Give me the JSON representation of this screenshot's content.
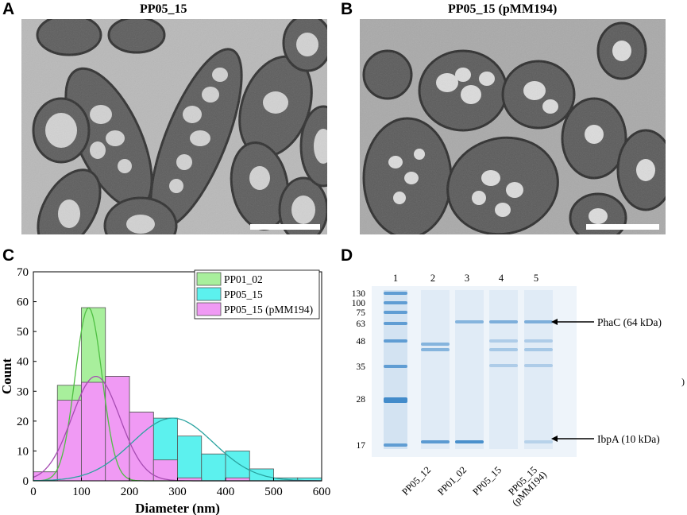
{
  "panels": {
    "a": {
      "letter": "A",
      "title": "PP05_15"
    },
    "b": {
      "letter": "B",
      "title": "PP05_15 (pMM194)"
    },
    "c": {
      "letter": "C"
    },
    "d": {
      "letter": "D"
    }
  },
  "chart_data": {
    "type": "bar",
    "subtype": "overlaid-histogram-with-gaussian-fits",
    "xlabel": "Diameter (nm)",
    "ylabel": "Count",
    "xlim": [
      0,
      600
    ],
    "ylim": [
      0,
      70
    ],
    "xticks": [
      0,
      100,
      200,
      300,
      400,
      500,
      600
    ],
    "yticks": [
      0,
      10,
      20,
      30,
      40,
      50,
      60,
      70
    ],
    "legend_position": "top-right",
    "bin_width": 50,
    "series": [
      {
        "name": "PP01_02",
        "color": "#a8ef9c",
        "line_color": "#4fbf43",
        "bins": [
          0,
          50,
          100,
          150,
          200,
          250,
          300,
          350,
          400,
          450,
          500,
          550
        ],
        "values": [
          3,
          32,
          58,
          35,
          23,
          7,
          2,
          0,
          0,
          0,
          0,
          0
        ],
        "fit": {
          "mean": 115,
          "sd": 28,
          "peak": 58
        }
      },
      {
        "name": "PP05_15",
        "color": "#5cf1ee",
        "line_color": "#2aa3a0",
        "bins": [
          0,
          50,
          100,
          150,
          200,
          250,
          300,
          350,
          400,
          450,
          500,
          550
        ],
        "values": [
          0,
          0,
          0,
          0,
          9,
          21,
          15,
          9,
          10,
          4,
          1,
          1
        ],
        "fit": {
          "mean": 290,
          "sd": 85,
          "peak": 21
        }
      },
      {
        "name": "PP05_15 (pMM194)",
        "color": "#f09af4",
        "line_color": "#a64cb2",
        "bins": [
          0,
          50,
          100,
          150,
          200,
          250,
          300,
          350,
          400,
          450,
          500,
          550
        ],
        "values": [
          3,
          27,
          33,
          35,
          23,
          7,
          1,
          0,
          1,
          0,
          0,
          0
        ],
        "fit": {
          "mean": 130,
          "sd": 50,
          "peak": 35
        }
      }
    ]
  },
  "gel": {
    "lane_numbers": [
      "1",
      "2",
      "3",
      "4",
      "5"
    ],
    "marker_labels": [
      "130",
      "100",
      "75",
      "63",
      "48",
      "35",
      "28",
      "17"
    ],
    "lane_labels": [
      "PP05_12",
      "PP01_02",
      "PP05_15",
      "PP05_15 (pMM194)"
    ],
    "lane_label_pp05_15_pmm194_line1": "PP05_15",
    "lane_label_pp05_15_pmm194_line2": "(pMM194)",
    "annotations": [
      {
        "label": "PhaC (64 kDa)"
      },
      {
        "label": "IbpA (10 kDa)"
      }
    ],
    "stray_mark": ")",
    "band_color": "#3a86c8"
  }
}
